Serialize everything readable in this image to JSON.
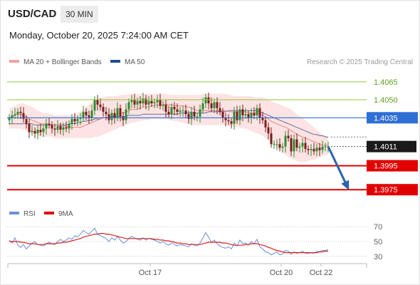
{
  "header": {
    "symbol": "USD/CAD",
    "interval": "30 MIN",
    "datetime": "Monday, October 20, 2025 7:24:00 AM CET"
  },
  "legend": {
    "ma20_bb": "MA 20 + Bollinger Bands",
    "ma50": "MA 50",
    "credit": "Research © 2025 Trading Central",
    "rsi": "RSI",
    "rsi_ma": "9MA"
  },
  "colors": {
    "candle_up": "#2e8b2e",
    "candle_down": "#7a1c1c",
    "bollinger_fill": "#fde3e3",
    "ma20": "#f08080",
    "ma50": "#5d6f9a",
    "resistance": "#2f6fd6",
    "support": "#e10000",
    "level_green": "#8cc63f",
    "last_price_bg": "#1a1a1a",
    "rsi_line": "#6b8fd8",
    "rsi_ma_line": "#d92020",
    "projection_arrow": "#2b62a8"
  },
  "chart_data": [
    {
      "type": "line",
      "title": "USD/CAD 30 MIN",
      "ylim": [
        1.3968,
        1.4075
      ],
      "x_ticks": [
        {
          "index": 49,
          "label": "Oct 17"
        },
        {
          "index": 95,
          "label": "Oct 20"
        },
        {
          "index": 109,
          "label": "Oct 22"
        }
      ],
      "levels": [
        {
          "value": 1.4065,
          "label": "1.4065",
          "kind": "level"
        },
        {
          "value": 1.405,
          "label": "1.4050",
          "kind": "level"
        },
        {
          "value": 1.4035,
          "label": "1.4035",
          "kind": "resistance"
        },
        {
          "value": 1.4011,
          "label": "1.4011",
          "kind": "last"
        },
        {
          "value": 1.3995,
          "label": "1.3995",
          "kind": "support"
        },
        {
          "value": 1.3975,
          "label": "1.3975",
          "kind": "support"
        }
      ],
      "projection": {
        "from_index": 112,
        "from_value": 1.4011,
        "to_index": 120,
        "to_value": 1.3975
      },
      "close": [
        1.4035,
        1.4037,
        1.4038,
        1.404,
        1.4039,
        1.4034,
        1.403,
        1.4023,
        1.4024,
        1.4022,
        1.4025,
        1.4023,
        1.4026,
        1.403,
        1.4029,
        1.4026,
        1.4025,
        1.4028,
        1.4025,
        1.4027,
        1.4026,
        1.403,
        1.4034,
        1.4032,
        1.4034,
        1.4035,
        1.404,
        1.4037,
        1.4035,
        1.4041,
        1.405,
        1.4046,
        1.4044,
        1.404,
        1.4038,
        1.4033,
        1.4039,
        1.4035,
        1.4043,
        1.4036,
        1.4033,
        1.4042,
        1.4048,
        1.405,
        1.4046,
        1.4049,
        1.4047,
        1.4051,
        1.4046,
        1.4049,
        1.4047,
        1.4048,
        1.405,
        1.4045,
        1.4046,
        1.404,
        1.4038,
        1.4044,
        1.4042,
        1.404,
        1.4041,
        1.4041,
        1.4038,
        1.4034,
        1.404,
        1.4036,
        1.4036,
        1.4042,
        1.4047,
        1.4052,
        1.4047,
        1.4043,
        1.4048,
        1.4043,
        1.404,
        1.4035,
        1.4033,
        1.4032,
        1.403,
        1.404,
        1.4033,
        1.4042,
        1.4037,
        1.4038,
        1.4035,
        1.4039,
        1.4037,
        1.4043,
        1.4035,
        1.4033,
        1.4027,
        1.4022,
        1.4013,
        1.4013,
        1.4013,
        1.401,
        1.4011,
        1.402,
        1.4018,
        1.4007,
        1.4017,
        1.401,
        1.4011,
        1.4014,
        1.4009,
        1.4008,
        1.4009,
        1.4007,
        1.401,
        1.4008,
        1.4011,
        1.4011,
        1.4011
      ],
      "ma20": [
        1.4035,
        1.4036,
        1.4037,
        1.4038,
        1.4038,
        1.4037,
        1.4036,
        1.4034,
        1.4033,
        1.4032,
        1.4031,
        1.403,
        1.403,
        1.403,
        1.403,
        1.4029,
        1.4029,
        1.4029,
        1.4028,
        1.4028,
        1.4028,
        1.4027,
        1.4027,
        1.4027,
        1.4027,
        1.4027,
        1.4028,
        1.4029,
        1.403,
        1.4031,
        1.4032,
        1.4033,
        1.4034,
        1.4035,
        1.4035,
        1.4036,
        1.4036,
        1.4037,
        1.4038,
        1.4039,
        1.4039,
        1.404,
        1.4041,
        1.4042,
        1.4042,
        1.4042,
        1.4043,
        1.4044,
        1.4044,
        1.4044,
        1.4045,
        1.4045,
        1.4046,
        1.4045,
        1.4046,
        1.4046,
        1.4046,
        1.4046,
        1.4045,
        1.4045,
        1.4045,
        1.4045,
        1.4044,
        1.4044,
        1.4043,
        1.4042,
        1.4041,
        1.4041,
        1.4041,
        1.4041,
        1.4041,
        1.4041,
        1.4041,
        1.4041,
        1.4041,
        1.4041,
        1.4041,
        1.404,
        1.404,
        1.404,
        1.404,
        1.404,
        1.404,
        1.404,
        1.4039,
        1.4039,
        1.4039,
        1.4039,
        1.4038,
        1.4037,
        1.4036,
        1.4034,
        1.4032,
        1.4031,
        1.403,
        1.4029,
        1.4028,
        1.4027,
        1.4026,
        1.4024,
        1.4023,
        1.4021,
        1.402,
        1.4019,
        1.4018,
        1.4017,
        1.4016,
        1.4015,
        1.4014,
        1.4013,
        1.4012,
        1.4012,
        1.4012
      ],
      "ma50": [
        1.403,
        1.403,
        1.403,
        1.403,
        1.403,
        1.403,
        1.403,
        1.403,
        1.403,
        1.4029,
        1.4029,
        1.4029,
        1.4029,
        1.4029,
        1.4029,
        1.4029,
        1.4029,
        1.4029,
        1.4029,
        1.4029,
        1.4029,
        1.403,
        1.403,
        1.403,
        1.4031,
        1.4031,
        1.4032,
        1.4032,
        1.4033,
        1.4033,
        1.4034,
        1.4034,
        1.4034,
        1.4035,
        1.4035,
        1.4035,
        1.4036,
        1.4036,
        1.4036,
        1.4036,
        1.4036,
        1.4036,
        1.4037,
        1.4037,
        1.4037,
        1.4037,
        1.4037,
        1.4038,
        1.4038,
        1.4038,
        1.4038,
        1.4038,
        1.4038,
        1.4038,
        1.4038,
        1.4038,
        1.4038,
        1.4038,
        1.4038,
        1.4038,
        1.4039,
        1.4039,
        1.4039,
        1.4039,
        1.4039,
        1.4039,
        1.4039,
        1.4039,
        1.4039,
        1.4039,
        1.404,
        1.404,
        1.404,
        1.404,
        1.404,
        1.404,
        1.404,
        1.4041,
        1.4041,
        1.4041,
        1.4041,
        1.4041,
        1.4041,
        1.4041,
        1.4041,
        1.4041,
        1.4041,
        1.4041,
        1.404,
        1.4039,
        1.4038,
        1.4037,
        1.4036,
        1.4035,
        1.4034,
        1.4033,
        1.4032,
        1.4031,
        1.403,
        1.4029,
        1.4028,
        1.4027,
        1.4026,
        1.4025,
        1.4024,
        1.4023,
        1.4022,
        1.4021,
        1.4021,
        1.402,
        1.402,
        1.4019,
        1.4019
      ],
      "bb_upper": [
        1.4042,
        1.4044,
        1.4045,
        1.4046,
        1.4047,
        1.4047,
        1.4046,
        1.4045,
        1.4044,
        1.4043,
        1.4041,
        1.404,
        1.4039,
        1.4039,
        1.4038,
        1.4038,
        1.4037,
        1.4037,
        1.4037,
        1.4037,
        1.4037,
        1.4037,
        1.4037,
        1.4038,
        1.4039,
        1.404,
        1.4042,
        1.4044,
        1.4046,
        1.4048,
        1.405,
        1.4051,
        1.4052,
        1.4052,
        1.4053,
        1.4053,
        1.4053,
        1.4053,
        1.4053,
        1.4054,
        1.4054,
        1.4054,
        1.4055,
        1.4055,
        1.4055,
        1.4055,
        1.4055,
        1.4055,
        1.4055,
        1.4055,
        1.4055,
        1.4055,
        1.4055,
        1.4055,
        1.4055,
        1.4055,
        1.4054,
        1.4054,
        1.4054,
        1.4054,
        1.4054,
        1.4054,
        1.4054,
        1.4054,
        1.4054,
        1.4054,
        1.4054,
        1.4054,
        1.4055,
        1.4055,
        1.4055,
        1.4055,
        1.4055,
        1.4055,
        1.4055,
        1.4055,
        1.4055,
        1.4054,
        1.4054,
        1.4053,
        1.4053,
        1.4053,
        1.4053,
        1.4053,
        1.4053,
        1.4053,
        1.4052,
        1.4052,
        1.4052,
        1.4052,
        1.4051,
        1.405,
        1.4049,
        1.4048,
        1.4047,
        1.4046,
        1.4045,
        1.4044,
        1.4043,
        1.4042,
        1.404,
        1.4038,
        1.4036,
        1.4035,
        1.4033,
        1.4031,
        1.4029,
        1.4027,
        1.4025,
        1.4023,
        1.4021,
        1.402,
        1.4019
      ],
      "bb_lower": [
        1.4026,
        1.4026,
        1.4026,
        1.4026,
        1.4026,
        1.4025,
        1.4024,
        1.4023,
        1.4022,
        1.4021,
        1.402,
        1.4019,
        1.4019,
        1.4019,
        1.4019,
        1.4019,
        1.4018,
        1.4018,
        1.4018,
        1.4018,
        1.4018,
        1.4018,
        1.4018,
        1.4018,
        1.4018,
        1.4018,
        1.4018,
        1.4018,
        1.4018,
        1.4018,
        1.4019,
        1.4019,
        1.402,
        1.4021,
        1.4022,
        1.4023,
        1.4024,
        1.4025,
        1.4026,
        1.4027,
        1.4028,
        1.4029,
        1.403,
        1.4031,
        1.4031,
        1.4032,
        1.4032,
        1.4033,
        1.4033,
        1.4033,
        1.4034,
        1.4034,
        1.4034,
        1.4034,
        1.4034,
        1.4034,
        1.4033,
        1.4033,
        1.4032,
        1.4032,
        1.4031,
        1.4031,
        1.403,
        1.403,
        1.4029,
        1.4029,
        1.4029,
        1.4029,
        1.4029,
        1.4029,
        1.4029,
        1.4029,
        1.4029,
        1.4029,
        1.4029,
        1.4029,
        1.4029,
        1.4028,
        1.4028,
        1.4028,
        1.4027,
        1.4027,
        1.4026,
        1.4026,
        1.4025,
        1.4024,
        1.4023,
        1.4022,
        1.4021,
        1.402,
        1.4018,
        1.4016,
        1.4014,
        1.4012,
        1.401,
        1.4008,
        1.4006,
        1.4004,
        1.4002,
        1.4001,
        1.4,
        1.3999,
        1.3998,
        1.3998,
        1.3998,
        1.3999,
        1.4,
        1.4,
        1.4001,
        1.4002,
        1.4003,
        1.4004,
        1.4004
      ]
    },
    {
      "type": "line",
      "title": "RSI",
      "ylim": [
        24,
        76
      ],
      "y_ticks": [
        70,
        50,
        30
      ],
      "series": [
        {
          "name": "RSI",
          "values": [
            52,
            48,
            55,
            45,
            42,
            46,
            40,
            44,
            48,
            50,
            46,
            45,
            44,
            47,
            49,
            47,
            46,
            50,
            53,
            50,
            52,
            55,
            53,
            58,
            56,
            60,
            65,
            62,
            60,
            64,
            68,
            60,
            58,
            56,
            54,
            50,
            55,
            52,
            57,
            52,
            48,
            50,
            54,
            57,
            55,
            53,
            52,
            55,
            52,
            54,
            53,
            52,
            50,
            48,
            50,
            47,
            45,
            48,
            46,
            44,
            46,
            45,
            44,
            43,
            47,
            45,
            44,
            48,
            55,
            62,
            56,
            49,
            52,
            47,
            44,
            42,
            41,
            43,
            40,
            48,
            44,
            52,
            47,
            48,
            45,
            50,
            47,
            53,
            43,
            40,
            36,
            35,
            32,
            34,
            36,
            32,
            33,
            38,
            37,
            33,
            36,
            34,
            35,
            37,
            34,
            34,
            35,
            34,
            37,
            36,
            38,
            38,
            39
          ]
        },
        {
          "name": "9MA",
          "values": [
            50,
            50,
            50,
            50,
            49,
            49,
            48,
            47,
            47,
            47,
            46,
            46,
            46,
            47,
            47,
            47,
            47,
            48,
            48,
            49,
            49,
            50,
            51,
            52,
            53,
            54,
            56,
            57,
            58,
            59,
            60,
            60,
            61,
            61,
            60,
            60,
            59,
            58,
            57,
            56,
            55,
            54,
            54,
            54,
            54,
            54,
            54,
            54,
            54,
            54,
            54,
            53,
            53,
            52,
            52,
            51,
            51,
            50,
            49,
            48,
            48,
            47,
            47,
            46,
            46,
            46,
            46,
            46,
            47,
            48,
            49,
            49,
            49,
            49,
            49,
            48,
            48,
            47,
            46,
            45,
            45,
            45,
            45,
            46,
            46,
            47,
            47,
            47,
            46,
            45,
            44,
            42,
            41,
            39,
            38,
            37,
            36,
            35,
            35,
            35,
            35,
            35,
            35,
            35,
            35,
            35,
            35,
            35,
            35,
            36,
            36,
            37,
            37
          ]
        }
      ]
    }
  ]
}
